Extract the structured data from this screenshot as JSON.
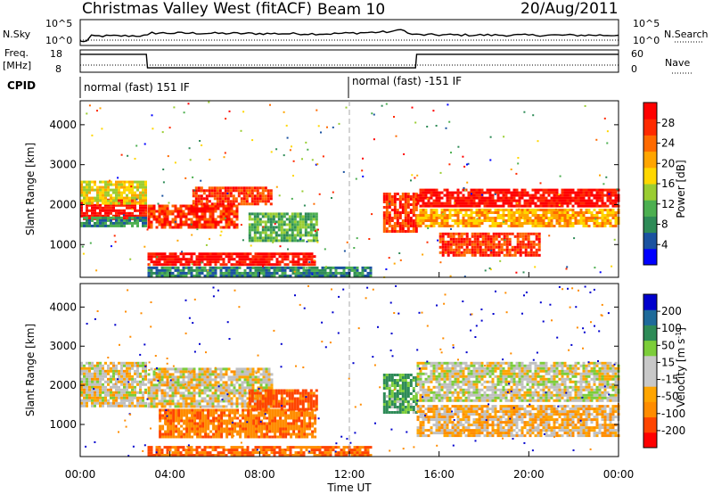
{
  "header": {
    "station": "Christmas Valley West (fitACF)",
    "beam": "Beam 10",
    "date": "20/Aug/2011"
  },
  "nsky_panel": {
    "left_label": "N.Sky",
    "left_ticks": [
      "10^5",
      "10^0"
    ],
    "right_label": "N.Search",
    "right_ticks": [
      "10^5",
      "10^0"
    ]
  },
  "freq_panel": {
    "left_label_line1": "Freq.",
    "left_label_line2": "[MHz]",
    "left_ticks": [
      "18",
      "8"
    ],
    "right_label": "Nave",
    "right_ticks": [
      "60",
      "0"
    ]
  },
  "cpid_panel": {
    "label": "CPID",
    "segments": [
      "normal (fast) 151 IF",
      "normal (fast) -151 IF"
    ]
  },
  "colors": {
    "power": [
      "#0000ff",
      "#1a52a0",
      "#2e8b57",
      "#4caf50",
      "#9acd32",
      "#ffd700",
      "#ffa500",
      "#ff6a00",
      "#ff2a00",
      "#ff0000"
    ],
    "velocity": [
      "#ff0000",
      "#ff4500",
      "#ff8c00",
      "#ffa500",
      "#c8c8c8",
      "#c8c8c8",
      "#7ccd3a",
      "#2e8b57",
      "#1e6a9a",
      "#0000cd"
    ],
    "ground_scatter": "#c0c0c0"
  },
  "chart_data": [
    {
      "type": "line",
      "name": "N.Sky / N.Search",
      "x_hours": [
        0,
        0.3,
        0.5,
        3.0,
        3.2,
        7,
        11,
        14,
        14.3,
        14.6,
        15,
        20,
        24
      ],
      "y_log": [
        0.5,
        0.6,
        1.7,
        1.8,
        2.4,
        2.3,
        2.2,
        2.7,
        3.4,
        2.3,
        2.0,
        1.9,
        1.9
      ]
    },
    {
      "type": "line",
      "name": "Freq.",
      "x_hours": [
        0,
        2.95,
        3.0,
        14.95,
        15.0,
        24
      ],
      "values_mhz": [
        17,
        17,
        9,
        9,
        17,
        17
      ],
      "ylim": [
        8,
        18
      ]
    },
    {
      "type": "heatmap",
      "xlabel": "",
      "ylabel": "Slant Range [km]",
      "yticks": [
        "1000",
        "2000",
        "3000",
        "4000"
      ],
      "ylim_km": [
        180,
        4600
      ],
      "colorbar_label": "Power [dB]",
      "colorbar_ticks": [
        "4",
        "8",
        "12",
        "16",
        "20",
        "24",
        "28"
      ],
      "scatter_regions_ut_hours_km": [
        {
          "t": [
            0.0,
            2.9
          ],
          "r": [
            1650,
            2150
          ],
          "level": 9
        },
        {
          "t": [
            0.0,
            2.9
          ],
          "r": [
            1450,
            1700
          ],
          "level": 2
        },
        {
          "t": [
            0.0,
            2.9
          ],
          "r": [
            2050,
            2600
          ],
          "level": 5
        },
        {
          "t": [
            3.0,
            7.0
          ],
          "r": [
            1450,
            2000
          ],
          "level": 8
        },
        {
          "t": [
            5.0,
            8.5
          ],
          "r": [
            2000,
            2450
          ],
          "level": 8
        },
        {
          "t": [
            7.5,
            10.5
          ],
          "r": [
            1100,
            1800
          ],
          "level": 3
        },
        {
          "t": [
            3.0,
            10.5
          ],
          "r": [
            500,
            800
          ],
          "level": 9
        },
        {
          "t": [
            3.0,
            13.0
          ],
          "r": [
            200,
            450
          ],
          "level": 2
        },
        {
          "t": [
            13.5,
            15.0
          ],
          "r": [
            1300,
            2300
          ],
          "level": 8
        },
        {
          "t": [
            15.0,
            24.0
          ],
          "r": [
            1950,
            2400
          ],
          "level": 9
        },
        {
          "t": [
            15.0,
            24.0
          ],
          "r": [
            1450,
            1900
          ],
          "level": 6
        },
        {
          "t": [
            16.0,
            20.5
          ],
          "r": [
            700,
            1300
          ],
          "level": 8
        }
      ]
    },
    {
      "type": "heatmap",
      "xlabel": "Time UT",
      "ylabel": "Slant Range [km]",
      "xticks": [
        "00:00",
        "04:00",
        "08:00",
        "12:00",
        "16:00",
        "20:00",
        "00:00"
      ],
      "yticks": [
        "1000",
        "2000",
        "3000",
        "4000"
      ],
      "ylim_km": [
        180,
        4600
      ],
      "colorbar_label": "Velocity [m s^-1]",
      "colorbar_ticks": [
        "200",
        "100",
        "50",
        "15",
        "-15",
        "-50",
        "-100",
        "-200"
      ],
      "scatter_regions_ut_hours_km": [
        {
          "t": [
            0.0,
            2.9
          ],
          "r": [
            1500,
            2600
          ],
          "vel": -5
        },
        {
          "t": [
            3.0,
            8.5
          ],
          "r": [
            1450,
            2450
          ],
          "vel": -5
        },
        {
          "t": [
            3.5,
            10.5
          ],
          "r": [
            700,
            1400
          ],
          "vel": -60
        },
        {
          "t": [
            7.5,
            10.5
          ],
          "r": [
            1400,
            1900
          ],
          "vel": -90
        },
        {
          "t": [
            3.0,
            13.0
          ],
          "r": [
            200,
            450
          ],
          "vel": -80
        },
        {
          "t": [
            13.5,
            15.0
          ],
          "r": [
            1300,
            2300
          ],
          "vel": 40
        },
        {
          "t": [
            15.0,
            24.0
          ],
          "r": [
            1600,
            2600
          ],
          "vel": 0
        },
        {
          "t": [
            15.0,
            24.0
          ],
          "r": [
            700,
            1500
          ],
          "vel": -20
        }
      ]
    }
  ]
}
